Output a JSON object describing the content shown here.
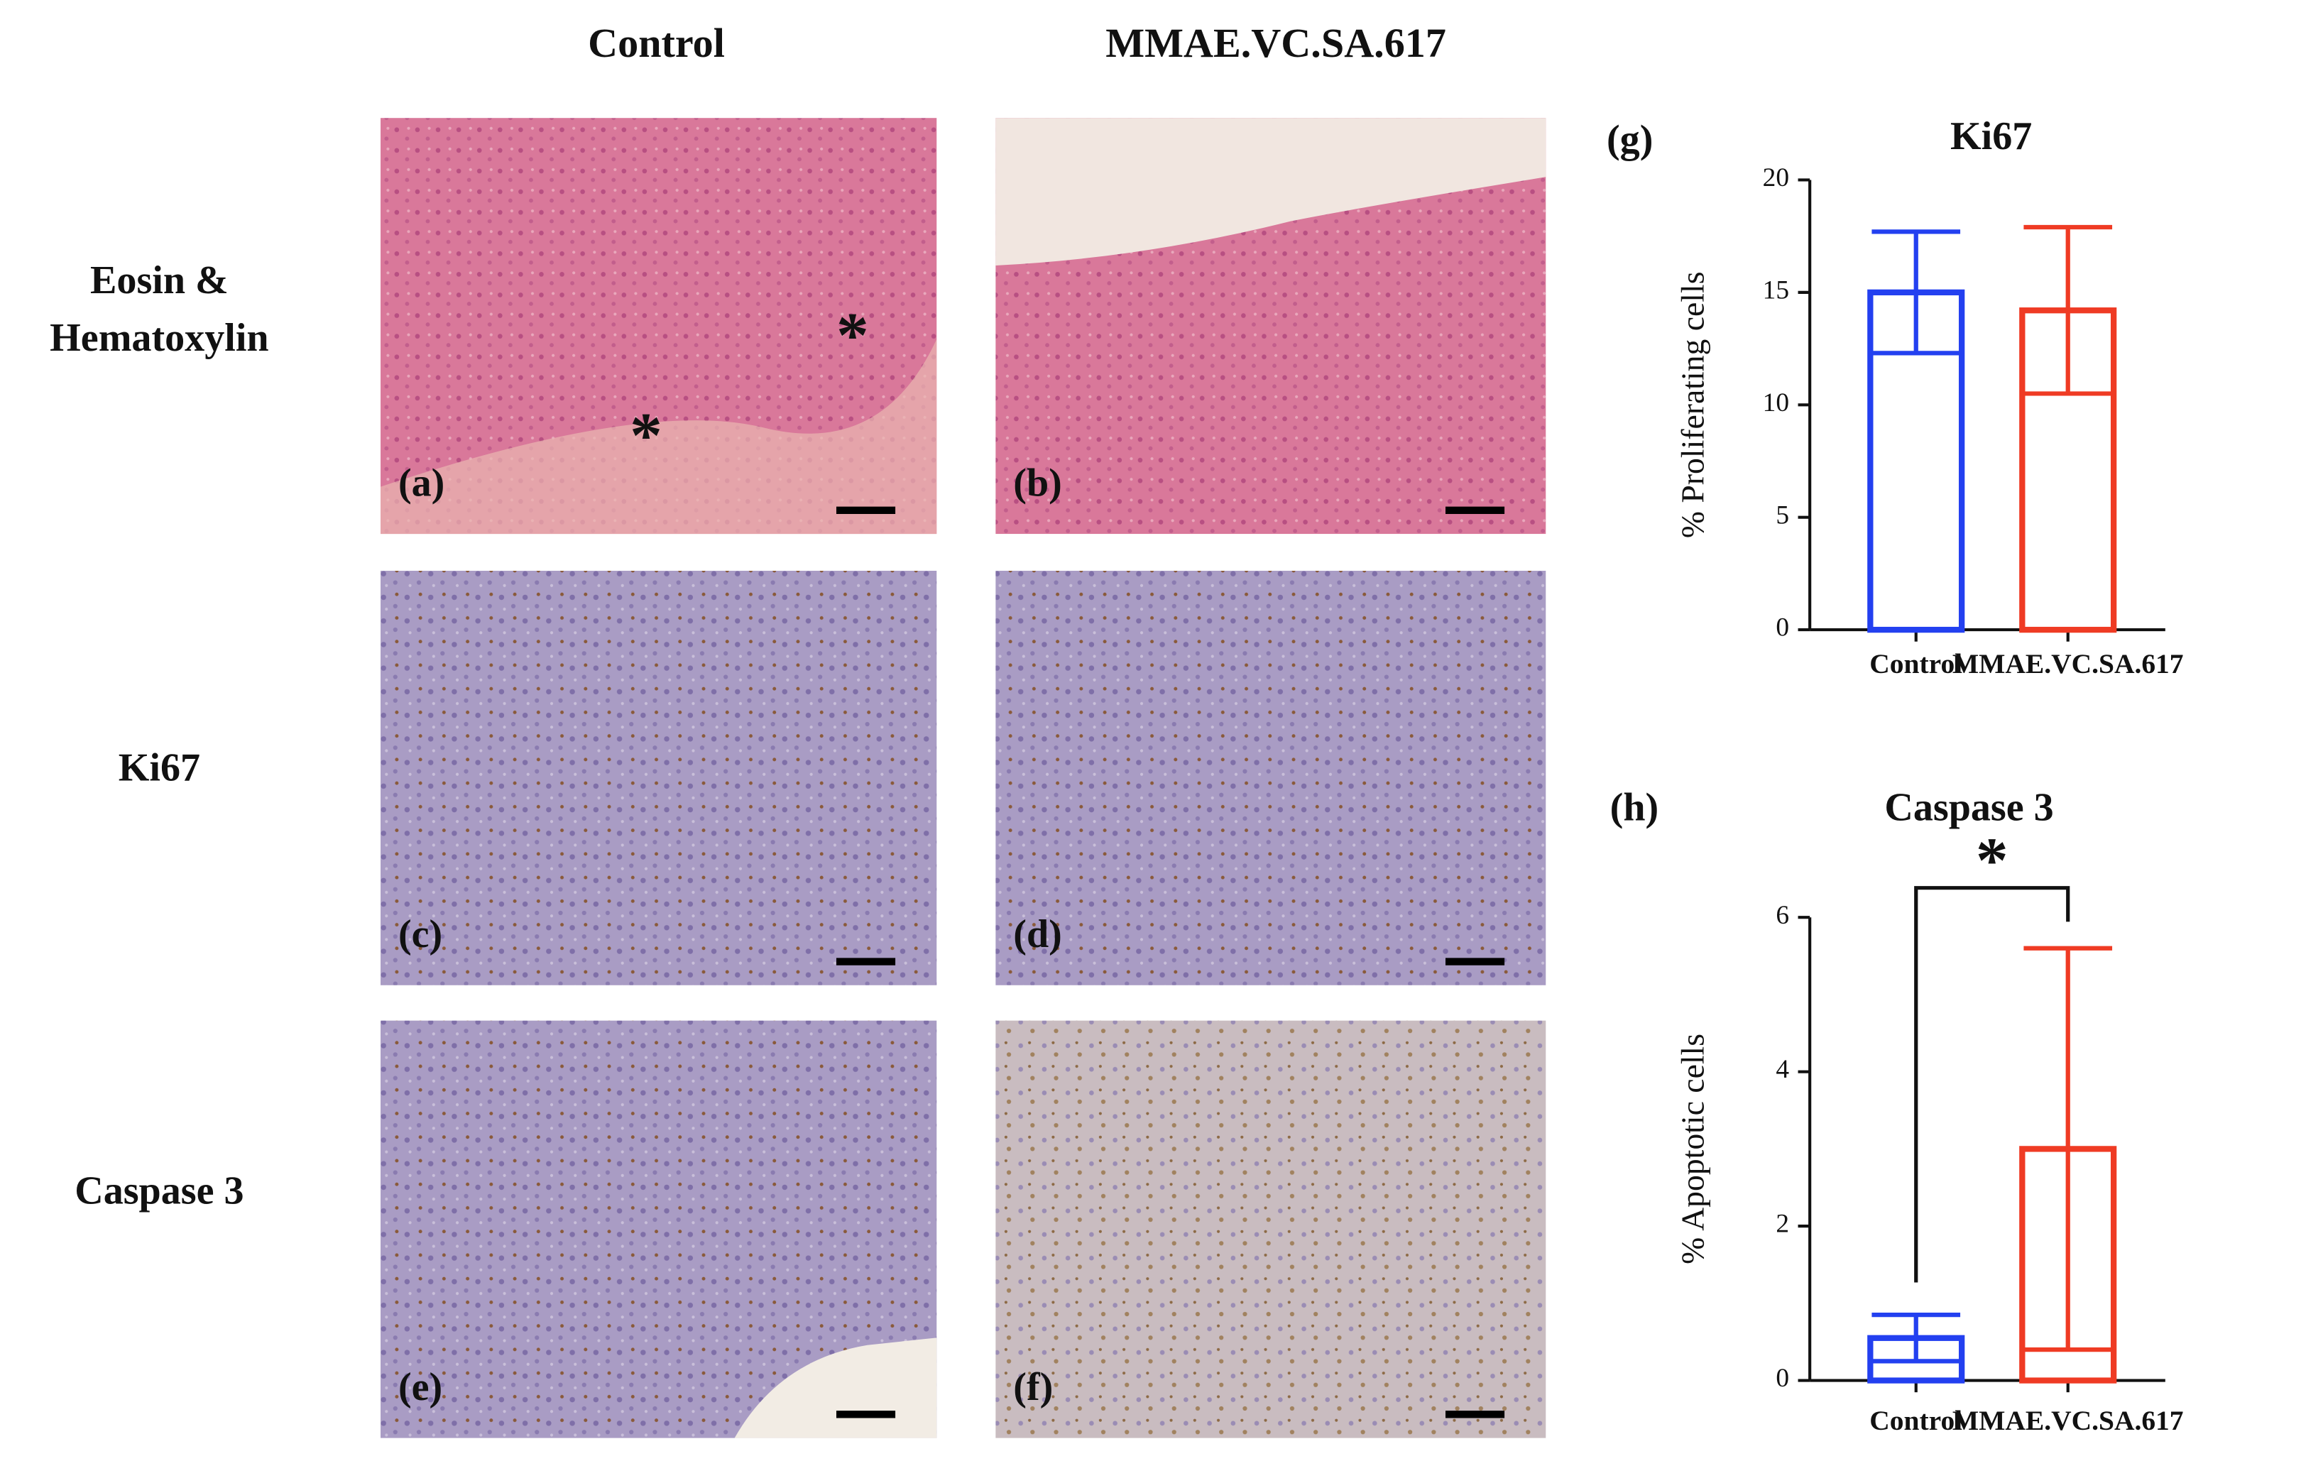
{
  "panels": {
    "column_titles": [
      "Control",
      "MMAE.VC.SA.617"
    ],
    "row_labels": [
      [
        "Eosin &",
        "Hematoxylin"
      ],
      [
        "Ki67"
      ],
      [
        "Caspase 3"
      ]
    ],
    "images": [
      {
        "label": "(a)",
        "asterisks": [
          "*",
          "*"
        ]
      },
      {
        "label": "(b)"
      },
      {
        "label": "(c)"
      },
      {
        "label": "(d)"
      },
      {
        "label": "(e)"
      },
      {
        "label": "(f)"
      }
    ]
  },
  "chart_data": [
    {
      "type": "bar",
      "panel_label": "(g)",
      "title": "Ki67",
      "y_label": "% Proliferating cells",
      "categories": [
        "Control",
        "MMAE.VC.SA.617"
      ],
      "values": [
        15,
        14.2
      ],
      "errors": [
        2.7,
        3.7
      ],
      "colors": [
        "#2340f0",
        "#ef3b24"
      ],
      "ylim": [
        0,
        20
      ],
      "yticks": [
        0,
        5,
        10,
        15,
        20
      ]
    },
    {
      "type": "bar",
      "panel_label": "(h)",
      "title": "Caspase 3",
      "y_label": "% Apoptotic cells",
      "categories": [
        "Control",
        "MMAE.VC.SA.617"
      ],
      "values": [
        0.55,
        3.0
      ],
      "errors": [
        0.3,
        2.6
      ],
      "colors": [
        "#2340f0",
        "#ef3b24"
      ],
      "ylim": [
        0,
        6
      ],
      "yticks": [
        0,
        2,
        4,
        6
      ],
      "significance": "*"
    }
  ]
}
